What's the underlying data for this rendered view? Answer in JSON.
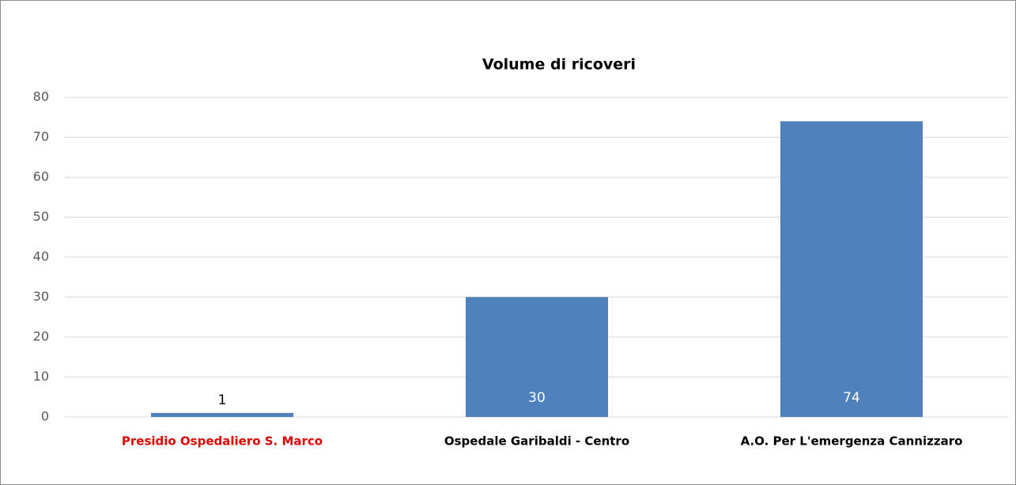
{
  "chart_data": {
    "type": "bar",
    "title": "Volume di ricoveri",
    "categories": [
      "Presidio Ospedaliero S. Marco",
      "Ospedale Garibaldi - Centro",
      "A.O. Per L'emergenza Cannizzaro"
    ],
    "category_colors": [
      "#e00000",
      "#000000",
      "#000000"
    ],
    "values": [
      1,
      30,
      74
    ],
    "color": "#4f81bd",
    "ylim": [
      0,
      80
    ],
    "yticks": [
      0,
      10,
      20,
      30,
      40,
      50,
      60,
      70,
      80
    ],
    "grid": true
  }
}
